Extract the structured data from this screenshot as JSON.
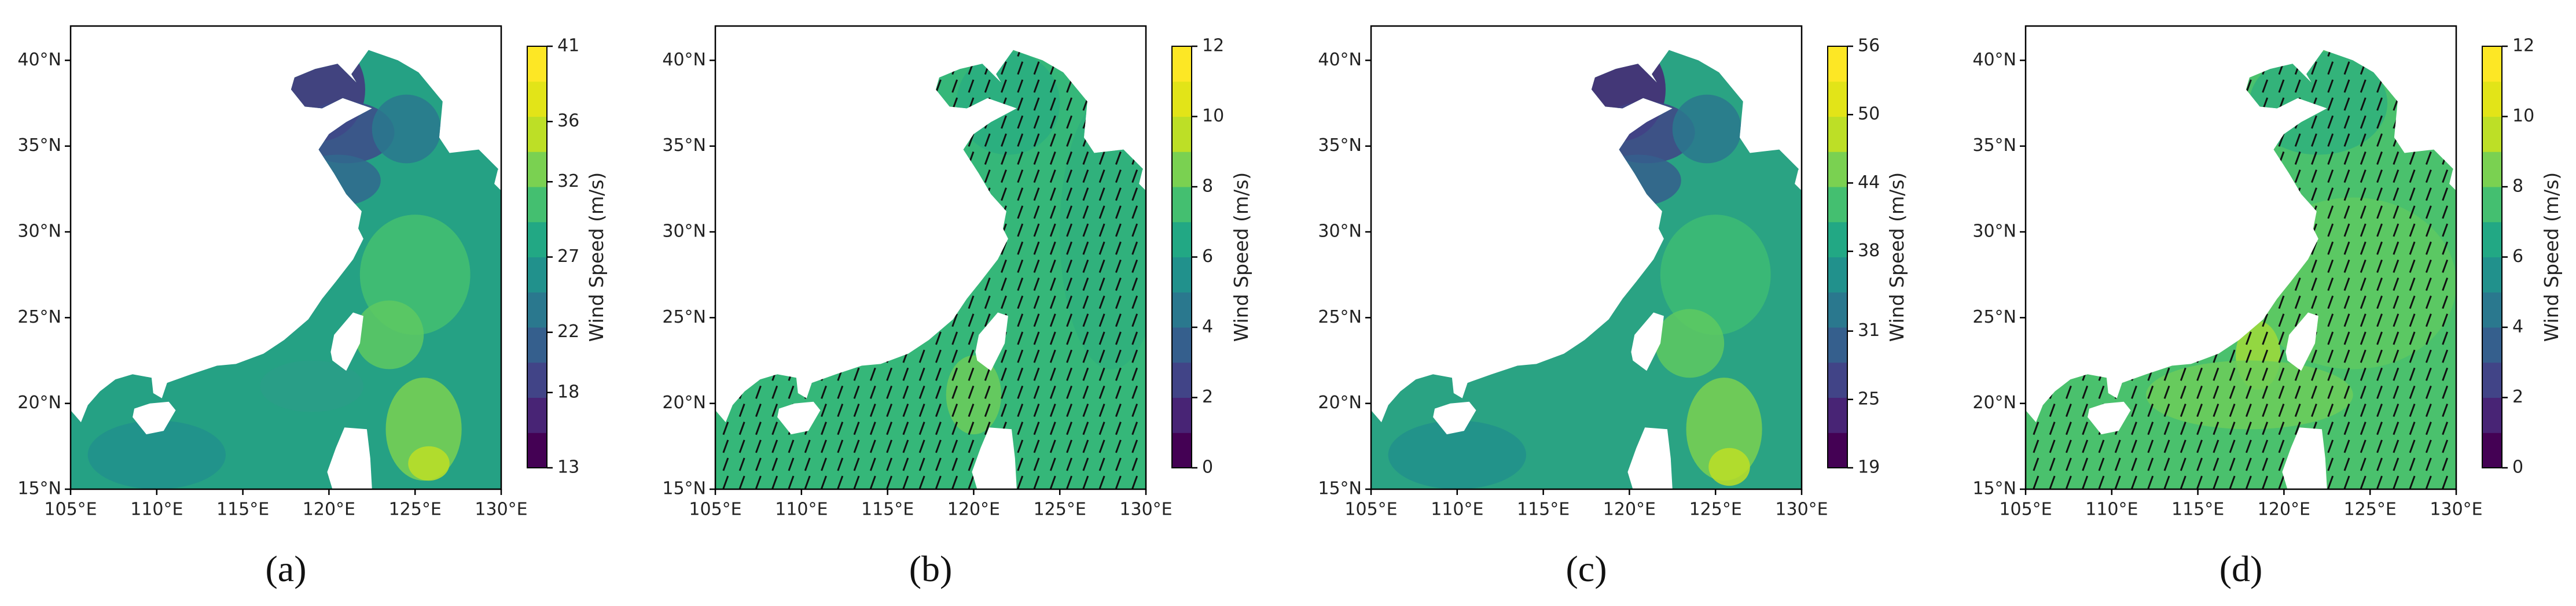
{
  "panels": [
    {
      "label": "(a)",
      "x_ticks": [
        "105°E",
        "110°E",
        "115°E",
        "120°E",
        "125°E",
        "130°E"
      ],
      "y_ticks": [
        "15°N",
        "20°N",
        "25°N",
        "30°N",
        "35°N",
        "40°N"
      ],
      "colorbar": {
        "label": "Wind Speed (m/s)",
        "ticks": [
          13,
          18,
          22,
          27,
          32,
          36,
          41
        ]
      }
    },
    {
      "label": "(b)",
      "x_ticks": [
        "105°E",
        "110°E",
        "115°E",
        "120°E",
        "125°E",
        "130°E"
      ],
      "y_ticks": [
        "15°N",
        "20°N",
        "25°N",
        "30°N",
        "35°N",
        "40°N"
      ],
      "colorbar": {
        "label": "Wind Speed (m/s)",
        "ticks": [
          0,
          2,
          4,
          6,
          8,
          10,
          12
        ]
      }
    },
    {
      "label": "(c)",
      "x_ticks": [
        "105°E",
        "110°E",
        "115°E",
        "120°E",
        "125°E",
        "130°E"
      ],
      "y_ticks": [
        "15°N",
        "20°N",
        "25°N",
        "30°N",
        "35°N",
        "40°N"
      ],
      "colorbar": {
        "label": "Wind Speed (m/s)",
        "ticks": [
          19,
          25,
          31,
          38,
          44,
          50,
          56
        ]
      }
    },
    {
      "label": "(d)",
      "x_ticks": [
        "105°E",
        "110°E",
        "115°E",
        "120°E",
        "125°E",
        "130°E"
      ],
      "y_ticks": [
        "15°N",
        "20°N",
        "25°N",
        "30°N",
        "35°N",
        "40°N"
      ],
      "colorbar": {
        "label": "Wind Speed (m/s)",
        "ticks": [
          0,
          2,
          4,
          6,
          8,
          10,
          12
        ]
      }
    }
  ]
}
